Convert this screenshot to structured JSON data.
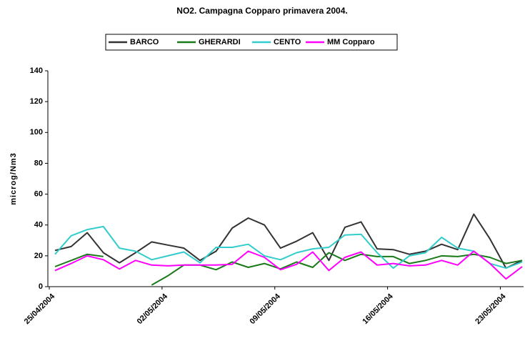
{
  "chart_data": {
    "type": "line",
    "title": "NO2. Campagna Copparo primavera 2004.",
    "y_label": "microg/Nm3",
    "categories": [
      "25/04/2004",
      null,
      null,
      null,
      null,
      null,
      null,
      "02/05/2004",
      null,
      null,
      null,
      null,
      null,
      null,
      "09/05/2004",
      null,
      null,
      null,
      null,
      null,
      null,
      "16/05/2004",
      null,
      null,
      null,
      null,
      null,
      null,
      "23/05/2004",
      null
    ],
    "series": [
      {
        "name": "BARCO",
        "color": "#333333",
        "values": [
          23.5,
          26,
          35,
          22,
          15.5,
          22,
          29,
          27,
          25,
          17,
          23,
          38,
          44.5,
          40,
          25,
          29.5,
          35,
          17,
          38.5,
          42,
          24.5,
          24,
          21,
          23,
          27.5,
          24,
          47,
          31,
          12,
          17
        ]
      },
      {
        "name": "GHERARDI",
        "color": "#1a7a1a",
        "values": [
          13,
          17,
          21,
          19.5,
          null,
          null,
          1,
          7,
          14,
          14,
          11,
          16,
          12.5,
          15,
          11.5,
          16,
          12.5,
          22,
          17,
          21,
          19.5,
          19.5,
          15,
          17,
          20,
          19.5,
          21,
          19,
          15,
          17
        ]
      },
      {
        "name": "CENTO",
        "color": "#33cccc",
        "values": [
          21,
          33,
          37,
          39,
          25,
          23,
          17.5,
          20,
          22.5,
          15.5,
          25.5,
          25.5,
          27.5,
          20,
          17.5,
          22,
          24.5,
          25.5,
          33.5,
          34,
          22,
          12,
          20,
          22,
          32,
          25,
          23,
          15,
          12,
          16
        ]
      },
      {
        "name": "MM Copparo",
        "color": "#ff00ff",
        "values": [
          10.5,
          15,
          20,
          17.5,
          11.5,
          17,
          14,
          13.5,
          14,
          14,
          14,
          14.5,
          23,
          19,
          11,
          14.5,
          22.5,
          10.5,
          19,
          22.5,
          14,
          15,
          13.5,
          14,
          17,
          14,
          23,
          15,
          5,
          13
        ]
      }
    ],
    "ylim": [
      0,
      140
    ],
    "yticks": [
      0,
      20,
      40,
      60,
      80,
      100,
      120,
      140
    ],
    "grid": false,
    "legend": "top"
  }
}
